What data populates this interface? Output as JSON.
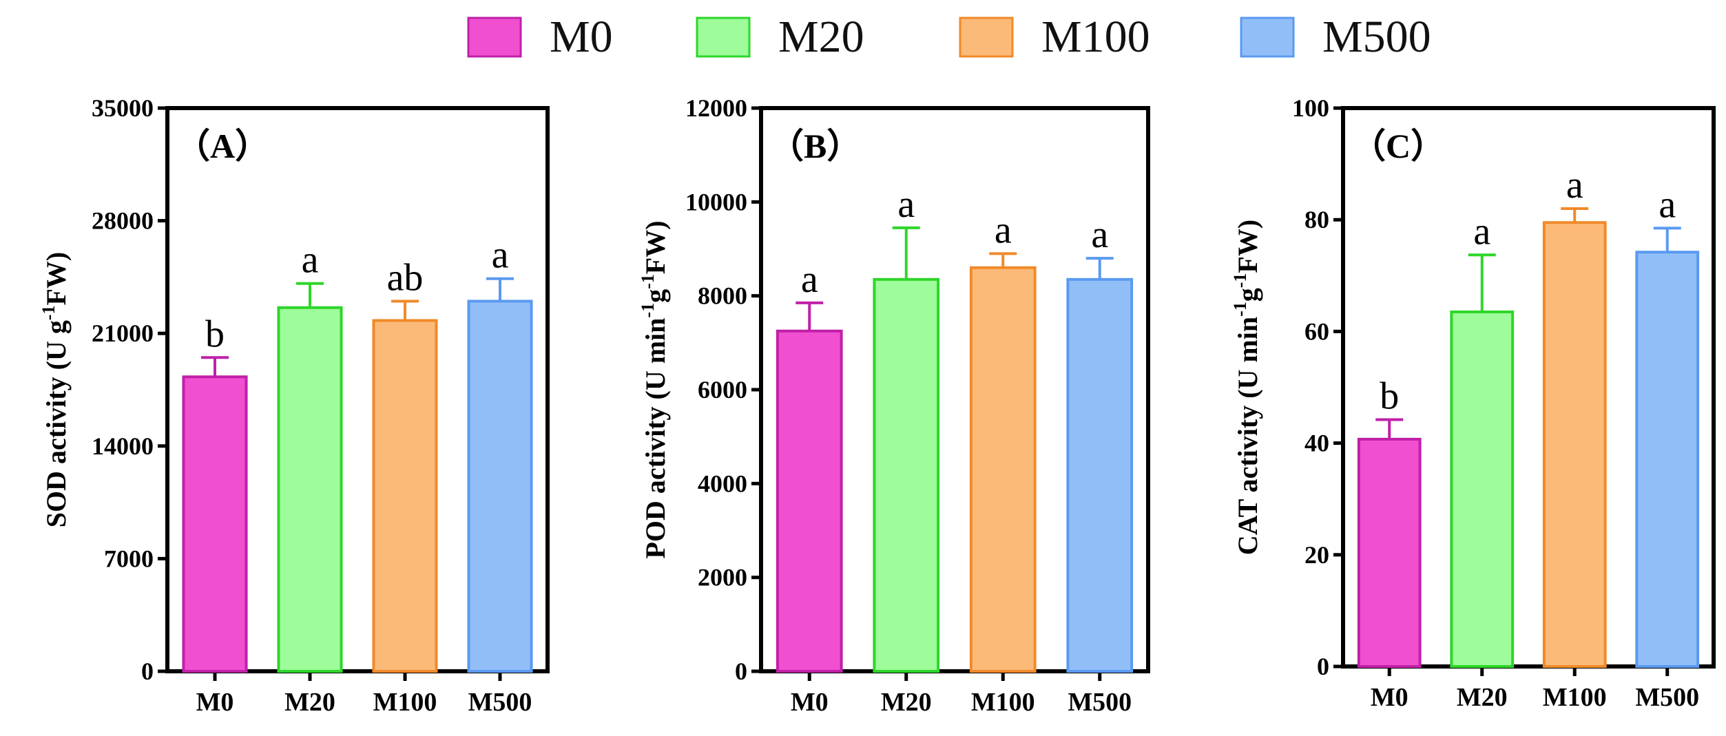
{
  "legend": {
    "items": [
      {
        "label": "M0",
        "fill": "#f04fd0",
        "stroke": "#c020a8"
      },
      {
        "label": "M20",
        "fill": "#9efc9a",
        "stroke": "#2ed62a"
      },
      {
        "label": "M100",
        "fill": "#fcba78",
        "stroke": "#f08a2a"
      },
      {
        "label": "M500",
        "fill": "#92bef8",
        "stroke": "#5a9af0"
      }
    ]
  },
  "chart_data": [
    {
      "type": "bar",
      "panel_label": "（A）",
      "ylabel": {
        "main": "SOD activity (U g",
        "sup": "-1",
        "tail": "FW)"
      },
      "categories": [
        "M0",
        "M20",
        "M100",
        "M500"
      ],
      "values": [
        18300,
        22600,
        21800,
        23000
      ],
      "errors": [
        1200,
        1500,
        1200,
        1400
      ],
      "letters": [
        "b",
        "a",
        "ab",
        "a"
      ],
      "ylim": [
        0,
        35000
      ],
      "yticks": [
        0,
        7000,
        14000,
        21000,
        28000,
        35000
      ],
      "ytick_labels": [
        "0",
        "7000",
        "14000",
        "21000",
        "28000",
        "35000"
      ]
    },
    {
      "type": "bar",
      "panel_label": "（B）",
      "ylabel": {
        "main": "POD activity (U min",
        "sup": "-1",
        "mid": "g",
        "sup2": "-1",
        "tail": "FW)"
      },
      "categories": [
        "M0",
        "M20",
        "M100",
        "M500"
      ],
      "values": [
        7250,
        8350,
        8600,
        8350
      ],
      "errors": [
        600,
        1100,
        300,
        450
      ],
      "letters": [
        "a",
        "a",
        "a",
        "a"
      ],
      "ylim": [
        0,
        12000
      ],
      "yticks": [
        0,
        2000,
        4000,
        6000,
        8000,
        10000,
        12000
      ],
      "ytick_labels": [
        "0",
        "2000",
        "4000",
        "6000",
        "8000",
        "10000",
        "12000"
      ]
    },
    {
      "type": "bar",
      "panel_label": "（C）",
      "ylabel": {
        "main": "CAT activity (U min",
        "sup": "-1",
        "mid": "g",
        "sup2": "-1",
        "tail": "FW)"
      },
      "categories": [
        "M0",
        "M20",
        "M100",
        "M500"
      ],
      "values": [
        40.7,
        63.5,
        79.5,
        74.2
      ],
      "errors": [
        3.5,
        10.2,
        2.5,
        4.3
      ],
      "letters": [
        "b",
        "a",
        "a",
        "a"
      ],
      "ylim": [
        0,
        100
      ],
      "yticks": [
        0,
        20,
        40,
        60,
        80,
        100
      ],
      "ytick_labels": [
        "0",
        "20",
        "40",
        "60",
        "80",
        "100"
      ]
    }
  ]
}
